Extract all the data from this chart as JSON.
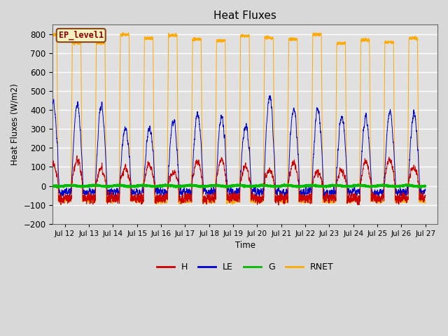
{
  "title": "Heat Fluxes",
  "ylabel": "Heat Fluxes (W/m2)",
  "xlabel": "Time",
  "ylim": [
    -200,
    850
  ],
  "yticks": [
    -200,
    -100,
    0,
    100,
    200,
    300,
    400,
    500,
    600,
    700,
    800
  ],
  "xtick_labels": [
    "Jul 12",
    "Jul 13",
    "Jul 14",
    "Jul 15",
    "Jul 16",
    "Jul 17",
    "Jul 18",
    "Jul 19",
    "Jul 20",
    "Jul 21",
    "Jul 22",
    "Jul 23",
    "Jul 24",
    "Jul 25",
    "Jul 26",
    "Jul 27"
  ],
  "colors": {
    "H": "#cc0000",
    "LE": "#0000cc",
    "G": "#00bb00",
    "RNET": "#ffaa00"
  },
  "annotation_text": "EP_level1",
  "bg_color": "#e0e0e0",
  "grid_color": "#ffffff",
  "n_days": 16,
  "samples_per_day": 288
}
